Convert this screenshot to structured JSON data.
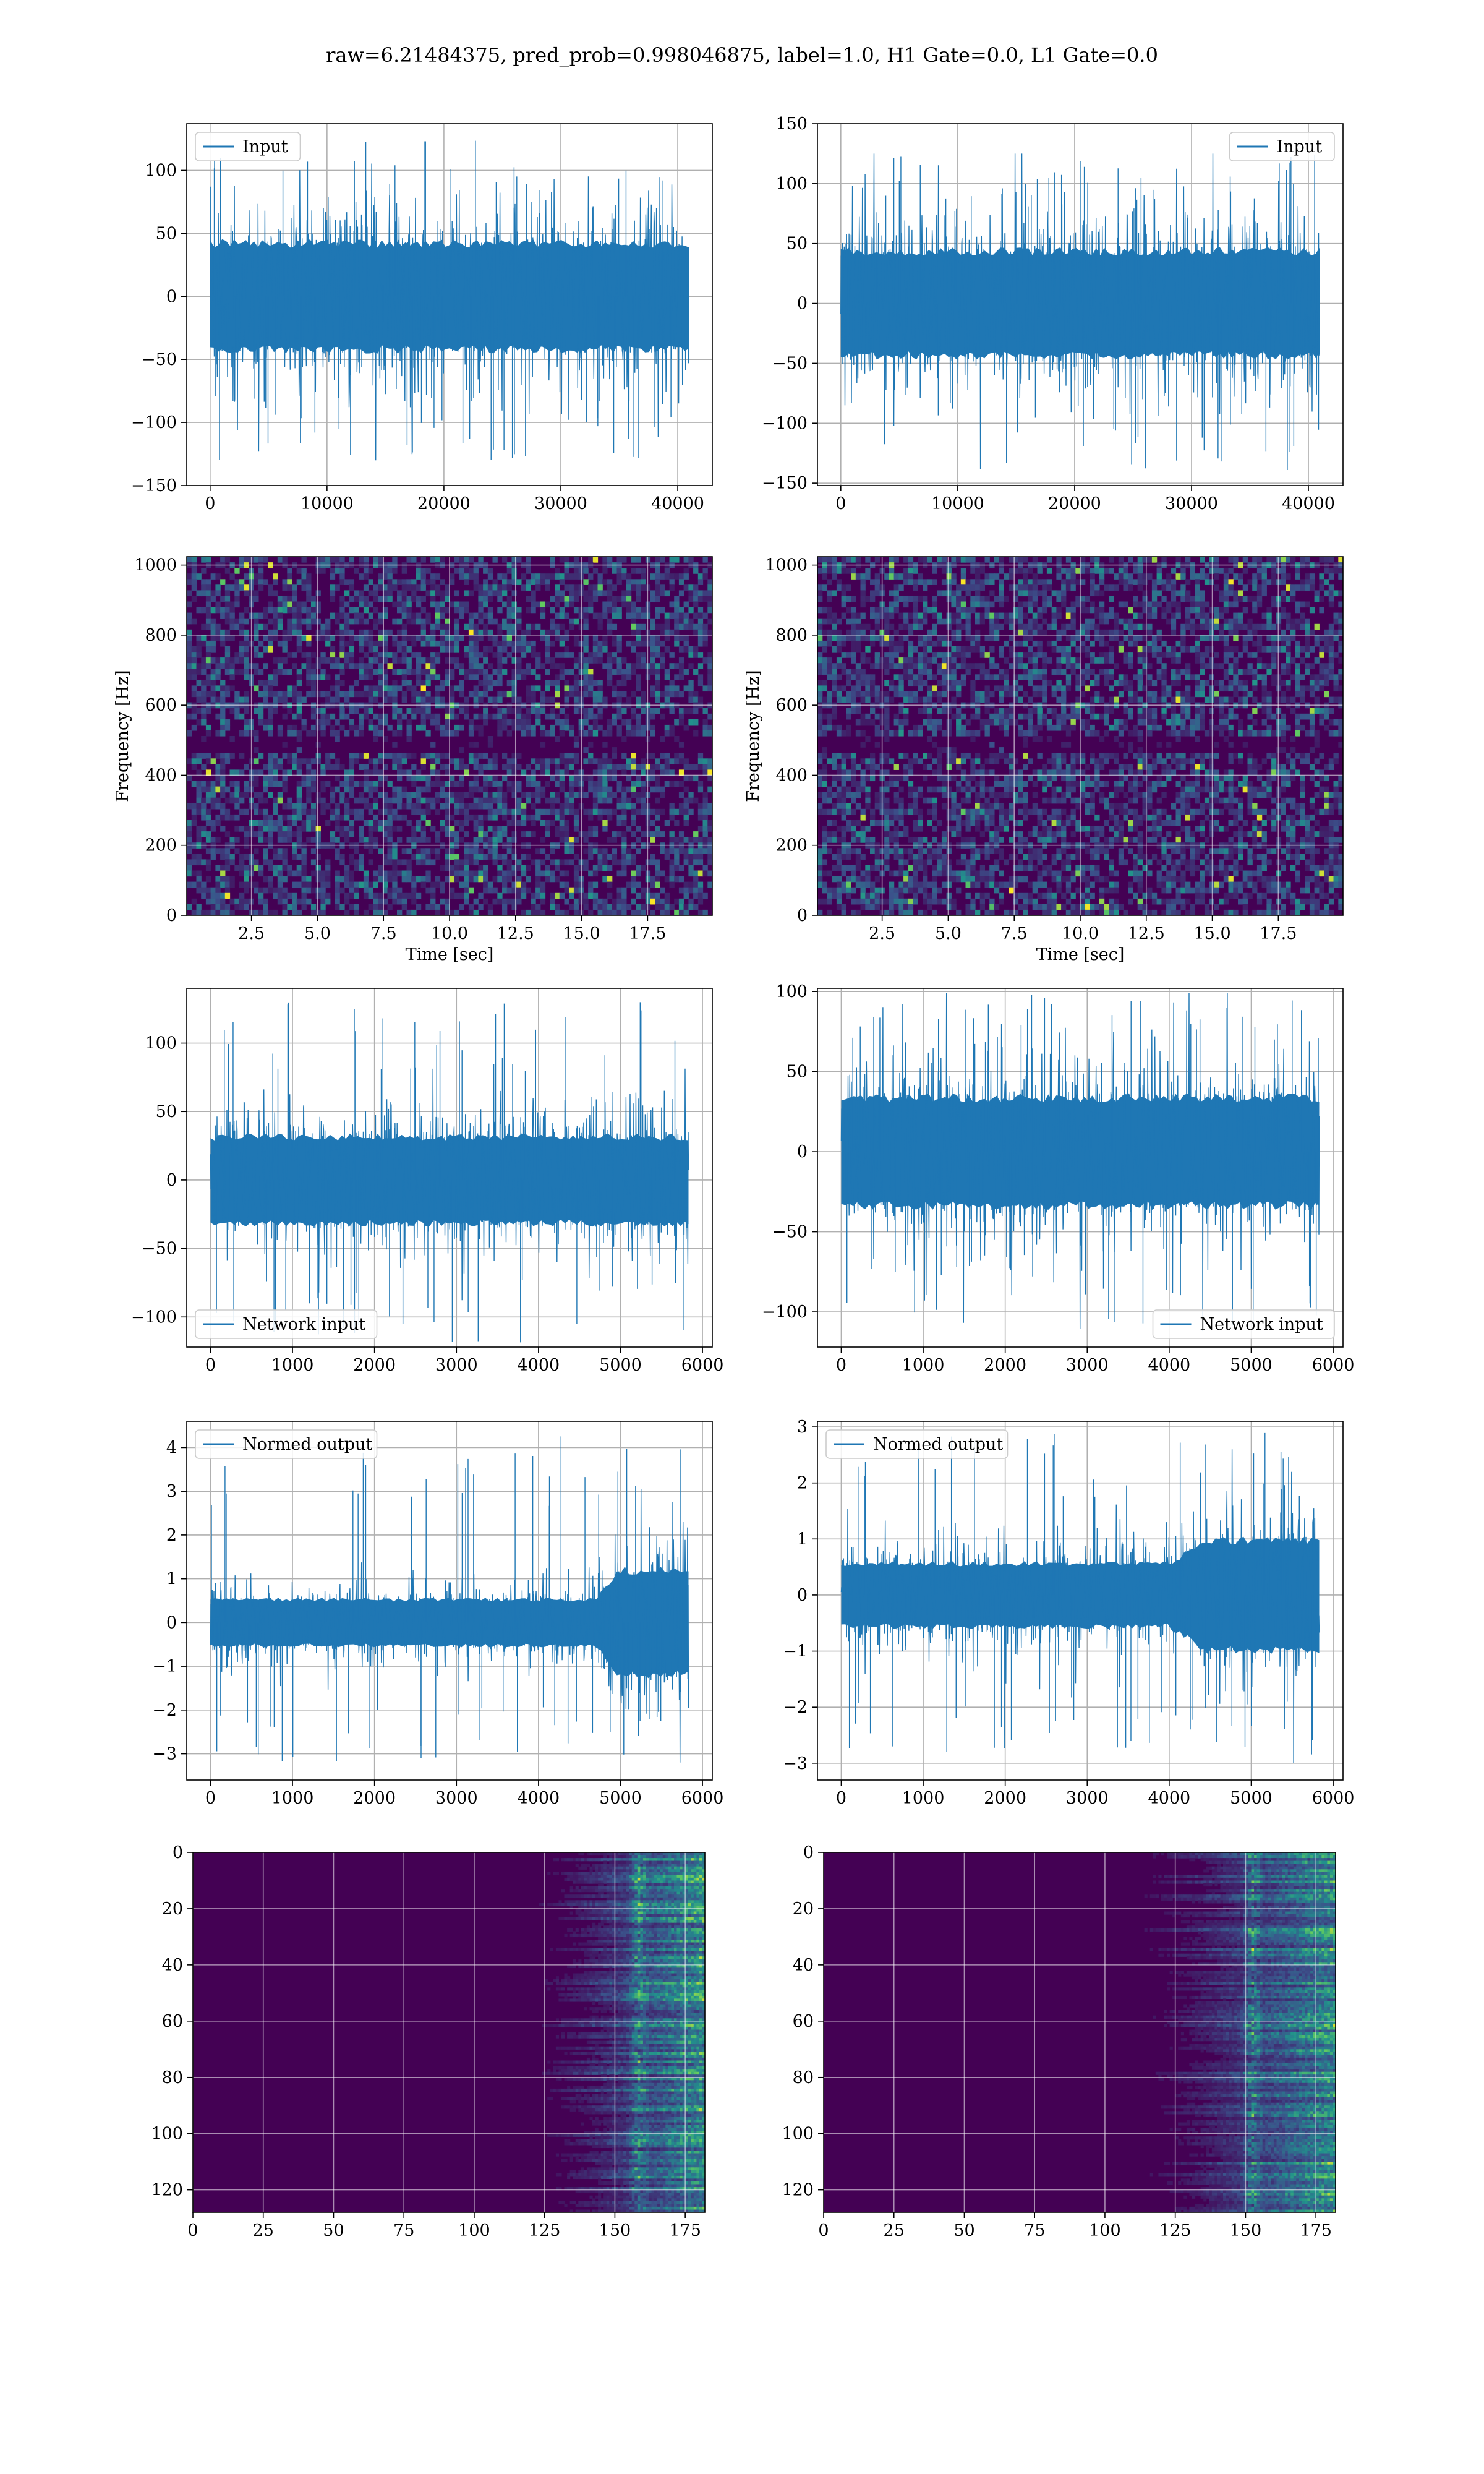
{
  "title": "raw=6.21484375, pred_prob=0.998046875, label=1.0, H1 Gate=0.0, L1 Gate=0.0",
  "colors": {
    "line": "#1f77b4",
    "viridis_dark": "#440154",
    "viridis_mid": "#31688e",
    "viridis_green": "#35b779",
    "viridis_yellow": "#fde725"
  },
  "chart_data": [
    {
      "id": "h1-input",
      "type": "line",
      "legend": "Input",
      "legend_loc": "upper left",
      "grid": true,
      "xlim": [
        -2000,
        42960
      ],
      "ylim": [
        -150,
        137
      ],
      "xticks": [
        0,
        10000,
        20000,
        30000,
        40000
      ],
      "xtick_labels": [
        "0",
        "10000",
        "20000",
        "30000",
        "40000"
      ],
      "yticks": [
        -150,
        -100,
        -50,
        0,
        50,
        100
      ],
      "ytick_labels": [
        "−150",
        "−100",
        "−50",
        "0",
        "50",
        "100"
      ],
      "series": [
        {
          "n": 40960,
          "x_start": 0,
          "x_end": 40960,
          "envelope_q": 60,
          "peak_max": 124,
          "peak_min": -130
        }
      ]
    },
    {
      "id": "l1-input",
      "type": "line",
      "legend": "Input",
      "legend_loc": "upper right",
      "grid": true,
      "xlim": [
        -2000,
        42960
      ],
      "ylim": [
        -152,
        150
      ],
      "xticks": [
        0,
        10000,
        20000,
        30000,
        40000
      ],
      "xtick_labels": [
        "0",
        "10000",
        "20000",
        "30000",
        "40000"
      ],
      "yticks": [
        -150,
        -100,
        -50,
        0,
        50,
        100,
        150
      ],
      "ytick_labels": [
        "−150",
        "−100",
        "−50",
        "0",
        "50",
        "100",
        "150"
      ],
      "series": [
        {
          "n": 40960,
          "x_start": 0,
          "x_end": 40960,
          "envelope_q": 62,
          "peak_max": 125,
          "peak_min": -140
        }
      ]
    },
    {
      "id": "h1-spectrogram",
      "type": "heatmap",
      "grid": true,
      "colormap": "viridis",
      "xlim": [
        0.05,
        19.95
      ],
      "ylim": [
        0,
        1024
      ],
      "xlabel": "Time [sec]",
      "ylabel": "Frequency [Hz]",
      "xticks": [
        2.5,
        5.0,
        7.5,
        10.0,
        12.5,
        15.0,
        17.5
      ],
      "xtick_labels": [
        "2.5",
        "5.0",
        "7.5",
        "10.0",
        "12.5",
        "15.0",
        "17.5"
      ],
      "yticks": [
        0,
        200,
        400,
        600,
        800,
        1000
      ],
      "ytick_labels": [
        "0",
        "200",
        "400",
        "600",
        "800",
        "1000"
      ],
      "dark_band_hz": 500
    },
    {
      "id": "l1-spectrogram",
      "type": "heatmap",
      "grid": true,
      "colormap": "viridis",
      "xlim": [
        0.05,
        19.95
      ],
      "ylim": [
        0,
        1024
      ],
      "xlabel": "Time [sec]",
      "ylabel": "Frequency [Hz]",
      "xticks": [
        2.5,
        5.0,
        7.5,
        10.0,
        12.5,
        15.0,
        17.5
      ],
      "xtick_labels": [
        "2.5",
        "5.0",
        "7.5",
        "10.0",
        "12.5",
        "15.0",
        "17.5"
      ],
      "yticks": [
        0,
        200,
        400,
        600,
        800,
        1000
      ],
      "ytick_labels": [
        "0",
        "200",
        "400",
        "600",
        "800",
        "1000"
      ],
      "dark_band_hz": 500
    },
    {
      "id": "h1-network-input",
      "type": "line",
      "legend": "Network input",
      "legend_loc": "lower left",
      "grid": true,
      "xlim": [
        -290,
        6120
      ],
      "ylim": [
        -122,
        140
      ],
      "xticks": [
        0,
        1000,
        2000,
        3000,
        4000,
        5000,
        6000
      ],
      "xtick_labels": [
        "0",
        "1000",
        "2000",
        "3000",
        "4000",
        "5000",
        "6000"
      ],
      "yticks": [
        -100,
        -50,
        0,
        50,
        100
      ],
      "ytick_labels": [
        "−100",
        "−50",
        "0",
        "50",
        "100"
      ],
      "series": [
        {
          "n": 5830,
          "x_start": 0,
          "x_end": 5830,
          "envelope_q": 45,
          "peak_max": 130,
          "peak_min": -120
        }
      ]
    },
    {
      "id": "l1-network-input",
      "type": "line",
      "legend": "Network input",
      "legend_loc": "lower right",
      "grid": true,
      "xlim": [
        -290,
        6120
      ],
      "ylim": [
        -122,
        102
      ],
      "xticks": [
        0,
        1000,
        2000,
        3000,
        4000,
        5000,
        6000
      ],
      "xtick_labels": [
        "0",
        "1000",
        "2000",
        "3000",
        "4000",
        "5000",
        "6000"
      ],
      "yticks": [
        -100,
        -50,
        0,
        50,
        100
      ],
      "ytick_labels": [
        "−100",
        "−50",
        "0",
        "50",
        "100"
      ],
      "series": [
        {
          "n": 5830,
          "x_start": 0,
          "x_end": 5830,
          "envelope_q": 48,
          "peak_max": 99,
          "peak_min": -112
        }
      ]
    },
    {
      "id": "h1-normed-output",
      "type": "line",
      "legend": "Normed output",
      "legend_loc": "upper left",
      "grid": true,
      "xlim": [
        -290,
        6120
      ],
      "ylim": [
        -3.6,
        4.6
      ],
      "xticks": [
        0,
        1000,
        2000,
        3000,
        4000,
        5000,
        6000
      ],
      "xtick_labels": [
        "0",
        "1000",
        "2000",
        "3000",
        "4000",
        "5000",
        "6000"
      ],
      "yticks": [
        -3,
        -2,
        -1,
        0,
        1,
        2,
        3,
        4
      ],
      "ytick_labels": [
        "−3",
        "−2",
        "−1",
        "0",
        "1",
        "2",
        "3",
        "4"
      ],
      "series": [
        {
          "n": 5830,
          "x_start": 0,
          "x_end": 5830,
          "envelope_q": 0.75,
          "burst_from": 4700,
          "burst_q": 1.7,
          "peak_max": 4.3,
          "peak_min": -3.2
        }
      ]
    },
    {
      "id": "l1-normed-output",
      "type": "line",
      "legend": "Normed output",
      "legend_loc": "upper left",
      "grid": true,
      "xlim": [
        -290,
        6120
      ],
      "ylim": [
        -3.3,
        3.1
      ],
      "xticks": [
        0,
        1000,
        2000,
        3000,
        4000,
        5000,
        6000
      ],
      "xtick_labels": [
        "0",
        "1000",
        "2000",
        "3000",
        "4000",
        "5000",
        "6000"
      ],
      "yticks": [
        -3,
        -2,
        -1,
        0,
        1,
        2,
        3
      ],
      "ytick_labels": [
        "−3",
        "−2",
        "−1",
        "0",
        "1",
        "2",
        "3"
      ],
      "series": [
        {
          "n": 5830,
          "x_start": 0,
          "x_end": 5830,
          "envelope_q": 0.8,
          "burst_from": 4000,
          "burst_q": 1.4,
          "peak_max": 2.9,
          "peak_min": -3.0
        }
      ]
    },
    {
      "id": "h1-feature-map",
      "type": "heatmap",
      "grid": true,
      "colormap": "viridis",
      "y_inverted": true,
      "xlim": [
        0,
        182
      ],
      "ylim": [
        128,
        0
      ],
      "xticks": [
        0,
        25,
        50,
        75,
        100,
        125,
        150,
        175
      ],
      "xtick_labels": [
        "0",
        "25",
        "50",
        "75",
        "100",
        "125",
        "150",
        "175"
      ],
      "yticks": [
        0,
        20,
        40,
        60,
        80,
        100,
        120
      ],
      "ytick_labels": [
        "0",
        "20",
        "40",
        "60",
        "80",
        "100",
        "120"
      ],
      "active_from_col": 115,
      "hot_col": 158
    },
    {
      "id": "l1-feature-map",
      "type": "heatmap",
      "grid": true,
      "colormap": "viridis",
      "y_inverted": true,
      "xlim": [
        0,
        182
      ],
      "ylim": [
        128,
        0
      ],
      "xticks": [
        0,
        25,
        50,
        75,
        100,
        125,
        150,
        175
      ],
      "xtick_labels": [
        "0",
        "25",
        "50",
        "75",
        "100",
        "125",
        "150",
        "175"
      ],
      "yticks": [
        0,
        20,
        40,
        60,
        80,
        100,
        120
      ],
      "ytick_labels": [
        "0",
        "20",
        "40",
        "60",
        "80",
        "100",
        "120"
      ],
      "active_from_col": 105,
      "hot_col": 152
    }
  ]
}
